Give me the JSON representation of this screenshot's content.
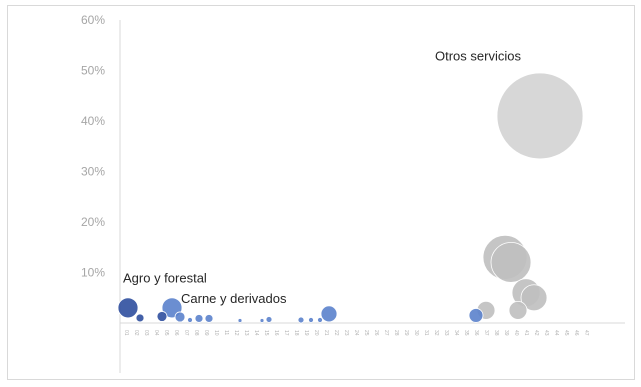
{
  "chart_data": {
    "type": "scatter",
    "variant": "bubble",
    "title": "",
    "xlabel": "",
    "ylabel": "",
    "ylim": [
      0,
      0.6
    ],
    "y_ticks": [
      {
        "value": 0.1,
        "label": "10%"
      },
      {
        "value": 0.2,
        "label": "20%"
      },
      {
        "value": 0.3,
        "label": "30%"
      },
      {
        "value": 0.4,
        "label": "40%"
      },
      {
        "value": 0.5,
        "label": "50%"
      },
      {
        "value": 0.6,
        "label": "60%"
      }
    ],
    "xlim": [
      0,
      47
    ],
    "grid": false,
    "legend": "none",
    "x_codes": [
      "01",
      "02",
      "03",
      "04",
      "05",
      "06",
      "07",
      "08",
      "09",
      "10",
      "11",
      "12",
      "13",
      "14",
      "15",
      "16",
      "17",
      "18",
      "19",
      "20",
      "21",
      "22",
      "23",
      "24",
      "25",
      "26",
      "27",
      "28",
      "29",
      "30",
      "31",
      "32",
      "33",
      "34",
      "35",
      "36",
      "37",
      "38",
      "39",
      "40",
      "41",
      "42",
      "43",
      "44",
      "45",
      "46",
      "47"
    ],
    "colors": {
      "dark_blue": "#2f4f9f",
      "mid_blue": "#5b82cc",
      "light_blue": "#8fabdc",
      "gray": "#bfbfbf",
      "light_gray": "#d3d3d3"
    },
    "points": [
      {
        "x": 0.8,
        "y": 0.03,
        "size": 10,
        "color": "dark_blue"
      },
      {
        "x": 2.0,
        "y": 0.01,
        "size": 4,
        "color": "dark_blue"
      },
      {
        "x": 4.2,
        "y": 0.013,
        "size": 5,
        "color": "dark_blue"
      },
      {
        "x": 5.2,
        "y": 0.03,
        "size": 10,
        "color": "mid_blue"
      },
      {
        "x": 6.0,
        "y": 0.012,
        "size": 5,
        "color": "mid_blue"
      },
      {
        "x": 7.0,
        "y": 0.006,
        "size": 2.5,
        "color": "mid_blue"
      },
      {
        "x": 7.9,
        "y": 0.009,
        "size": 4,
        "color": "mid_blue"
      },
      {
        "x": 8.9,
        "y": 0.009,
        "size": 4,
        "color": "mid_blue"
      },
      {
        "x": 12.0,
        "y": 0.005,
        "size": 2,
        "color": "mid_blue"
      },
      {
        "x": 14.2,
        "y": 0.005,
        "size": 2,
        "color": "mid_blue"
      },
      {
        "x": 14.9,
        "y": 0.007,
        "size": 3,
        "color": "mid_blue"
      },
      {
        "x": 18.1,
        "y": 0.006,
        "size": 3,
        "color": "mid_blue"
      },
      {
        "x": 19.1,
        "y": 0.006,
        "size": 2.5,
        "color": "mid_blue"
      },
      {
        "x": 20.0,
        "y": 0.006,
        "size": 2.5,
        "color": "mid_blue"
      },
      {
        "x": 20.9,
        "y": 0.018,
        "size": 8,
        "color": "mid_blue"
      },
      {
        "x": 35.6,
        "y": 0.015,
        "size": 7,
        "color": "mid_blue"
      },
      {
        "x": 36.6,
        "y": 0.025,
        "size": 9,
        "color": "gray"
      },
      {
        "x": 38.5,
        "y": 0.13,
        "size": 22,
        "color": "gray"
      },
      {
        "x": 39.1,
        "y": 0.12,
        "size": 20,
        "color": "gray"
      },
      {
        "x": 39.8,
        "y": 0.025,
        "size": 9,
        "color": "gray"
      },
      {
        "x": 40.6,
        "y": 0.06,
        "size": 14,
        "color": "gray"
      },
      {
        "x": 41.4,
        "y": 0.05,
        "size": 13,
        "color": "gray"
      },
      {
        "x": 42.0,
        "y": 0.41,
        "size": 43,
        "color": "light_gray"
      }
    ],
    "annotations": [
      {
        "text": "Agro y forestal",
        "x": 0.3,
        "y": 0.08
      },
      {
        "text": "Carne y derivados",
        "x": 6.1,
        "y": 0.04
      },
      {
        "text": "Otros servicios",
        "x": 31.5,
        "y": 0.52
      }
    ]
  }
}
